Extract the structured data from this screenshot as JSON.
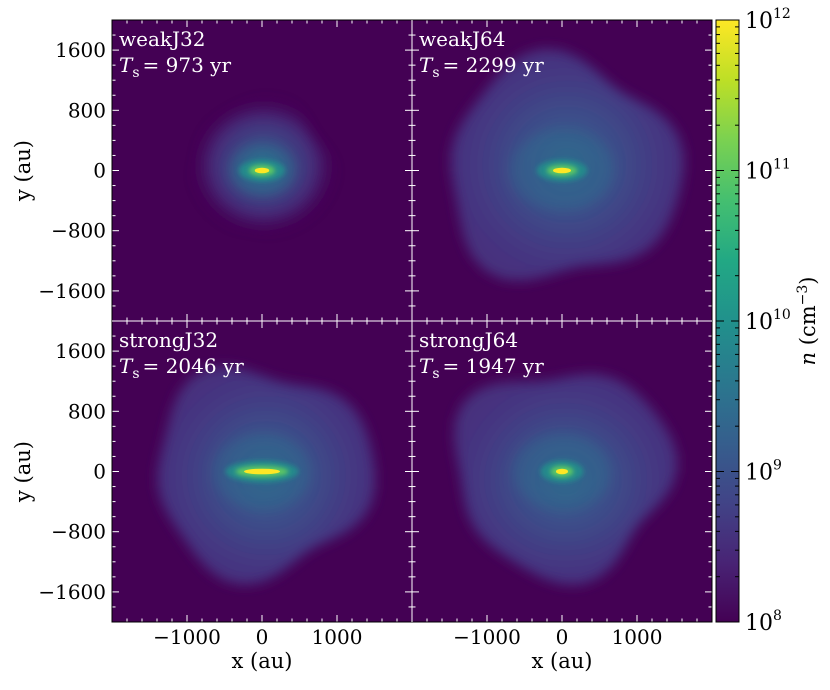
{
  "chart_data": {
    "type": "heatmap",
    "title": "",
    "xlabel": "x (au)",
    "ylabel": "y (au)",
    "xlim": [
      -2000,
      2000
    ],
    "ylim": [
      -2000,
      2000
    ],
    "x_ticks": [
      -1000,
      0,
      1000
    ],
    "x_tick_labels": [
      "−1000",
      "0",
      "1000"
    ],
    "y_ticks": [
      1600,
      800,
      0,
      -800,
      -1600
    ],
    "y_tick_labels": [
      "1600",
      "800",
      "0",
      "−800",
      "−1600"
    ],
    "colorbar": {
      "label": "n (cm⁻³)",
      "label_base": "n (cm",
      "label_exp": "−3",
      "label_close": ")",
      "scale": "log",
      "range": [
        100000000.0,
        1000000000000.0
      ],
      "colormap": "viridis",
      "ticks": [
        {
          "base": "10",
          "exp": "12",
          "value": 1000000000000.0
        },
        {
          "base": "10",
          "exp": "11",
          "value": 100000000000.0
        },
        {
          "base": "10",
          "exp": "10",
          "value": 10000000000.0
        },
        {
          "base": "10",
          "exp": "9",
          "value": 1000000000.0
        },
        {
          "base": "10",
          "exp": "8",
          "value": 100000000.0
        }
      ]
    },
    "panels": [
      {
        "name": "weakJ32",
        "time_prefix": "T",
        "time_sub": "s",
        "time_value": "= 973 yr",
        "cloud_radius_au": 950,
        "disk_half_length_au": 120,
        "peak_log_n": 12
      },
      {
        "name": "weakJ64",
        "time_prefix": "T",
        "time_sub": "s",
        "time_value": "= 2299 yr",
        "cloud_radius_au": 1550,
        "disk_half_length_au": 150,
        "peak_log_n": 12
      },
      {
        "name": "strongJ32",
        "time_prefix": "T",
        "time_sub": "s",
        "time_value": "= 2046 yr",
        "cloud_radius_au": 1450,
        "disk_half_length_au": 300,
        "peak_log_n": 12
      },
      {
        "name": "strongJ64",
        "time_prefix": "T",
        "time_sub": "s",
        "time_value": "= 1947 yr",
        "cloud_radius_au": 1450,
        "disk_half_length_au": 100,
        "peak_log_n": 12
      }
    ],
    "colors": {
      "background": "#440154",
      "cloud_outer": "#472d7b",
      "cloud_mid": "#3b528b",
      "cloud_inner": "#2c728e",
      "disk_outer": "#21918c",
      "disk_mid": "#5ec962",
      "disk_core": "#fde725"
    }
  }
}
